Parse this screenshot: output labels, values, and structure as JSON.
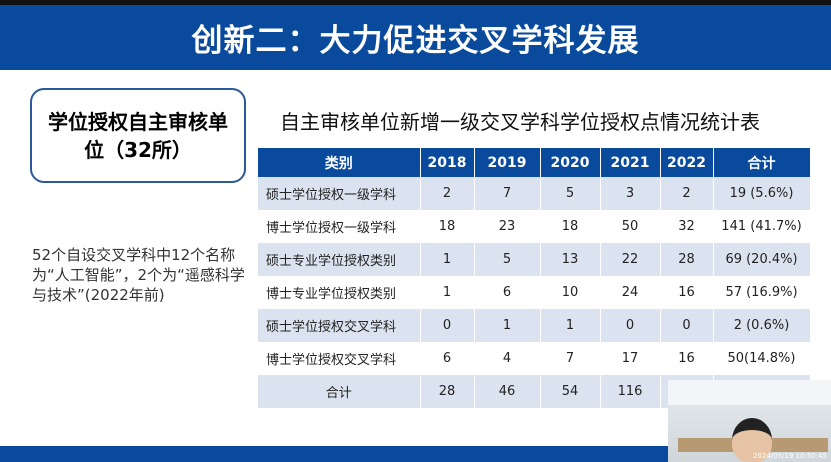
{
  "slide": {
    "title": "创新二：大力促进交叉学科发展",
    "box_text": "学位授权自主审核单位（32所）",
    "note": "52个自设交叉学科中12个名称为“人工智能”，2个为“遥感科学与技术”(2022年前)",
    "table_title": "自主审核单位新增一级交叉学科学位授权点情况统计表",
    "table": {
      "headers": [
        "类别",
        "2018",
        "2019",
        "2020",
        "2021",
        "2022",
        "合计"
      ],
      "rows": [
        [
          "硕士学位授权一级学科",
          "2",
          "7",
          "5",
          "3",
          "2",
          "19 (5.6%)"
        ],
        [
          "博士学位授权一级学科",
          "18",
          "23",
          "18",
          "50",
          "32",
          "141 (41.7%)"
        ],
        [
          "硕士专业学位授权类别",
          "1",
          "5",
          "13",
          "22",
          "28",
          "69 (20.4%)"
        ],
        [
          "博士专业学位授权类别",
          "1",
          "6",
          "10",
          "24",
          "16",
          "57 (16.9%)"
        ],
        [
          "硕士学位授权交叉学科",
          "0",
          "1",
          "1",
          "0",
          "0",
          "2 (0.6%)"
        ],
        [
          "博士学位授权交叉学科",
          "6",
          "4",
          "7",
          "17",
          "16",
          "50(14.8%)"
        ],
        [
          "合计",
          "28",
          "46",
          "54",
          "116",
          "",
          ""
        ]
      ]
    }
  },
  "webcam": {
    "timestamp": "2024/05/19 10:50:45"
  },
  "colors": {
    "brand_blue": "#0a4a9c",
    "row_alt": "#dbe3f0"
  }
}
